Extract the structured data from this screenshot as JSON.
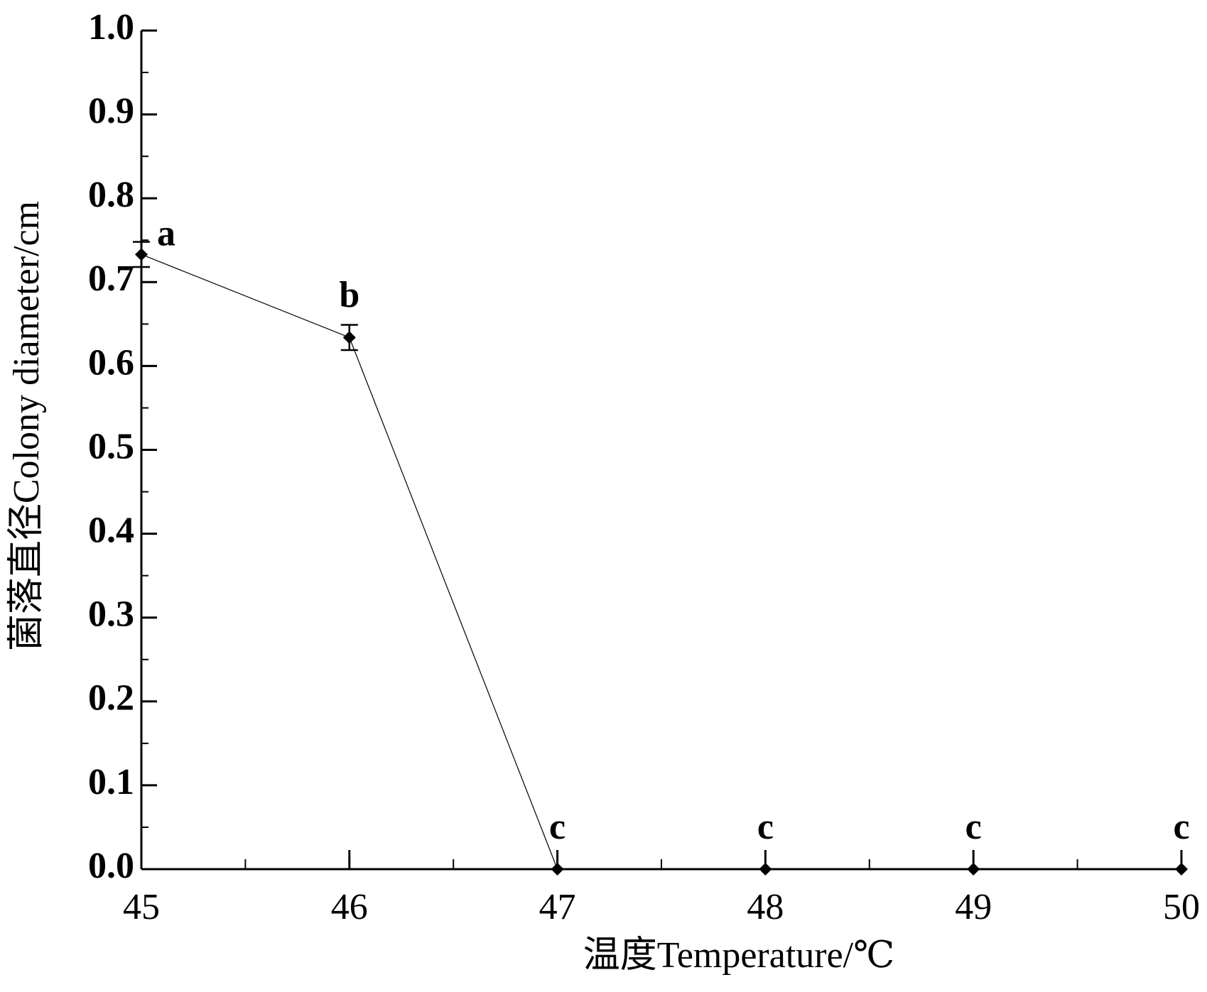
{
  "chart_data": {
    "type": "line",
    "x_label": "温度Temperature/℃",
    "y_label": "菌落直径Colony diameter/cm",
    "x": [
      45,
      46,
      47,
      48,
      49,
      50
    ],
    "series": [
      {
        "color": "#000000",
        "values": [
          0.733,
          0.634,
          0,
          0,
          0,
          0
        ],
        "errors": [
          0.015,
          0.015,
          0,
          0,
          0,
          0
        ]
      }
    ],
    "significance": [
      "a",
      "b",
      "c",
      "c",
      "c",
      "c"
    ],
    "xlim": [
      45,
      50
    ],
    "xticks": [
      45,
      46,
      47,
      48,
      49,
      50
    ],
    "xminorticks": [
      45.5,
      46.5,
      47.5,
      48.5,
      49.5
    ],
    "ylim": [
      0,
      1
    ],
    "yticks": [
      {
        "value": 0,
        "label": "0.0"
      },
      0.1,
      0.2,
      0.3,
      0.4,
      0.5,
      0.6,
      0.7,
      0.8,
      0.9,
      {
        "value": 1,
        "label": "1.0"
      }
    ],
    "yminorticks": [
      0.05,
      0.15,
      0.25,
      0.35,
      0.45,
      0.55,
      0.65,
      0.75,
      0.85,
      0.95
    ],
    "grid": false
  }
}
